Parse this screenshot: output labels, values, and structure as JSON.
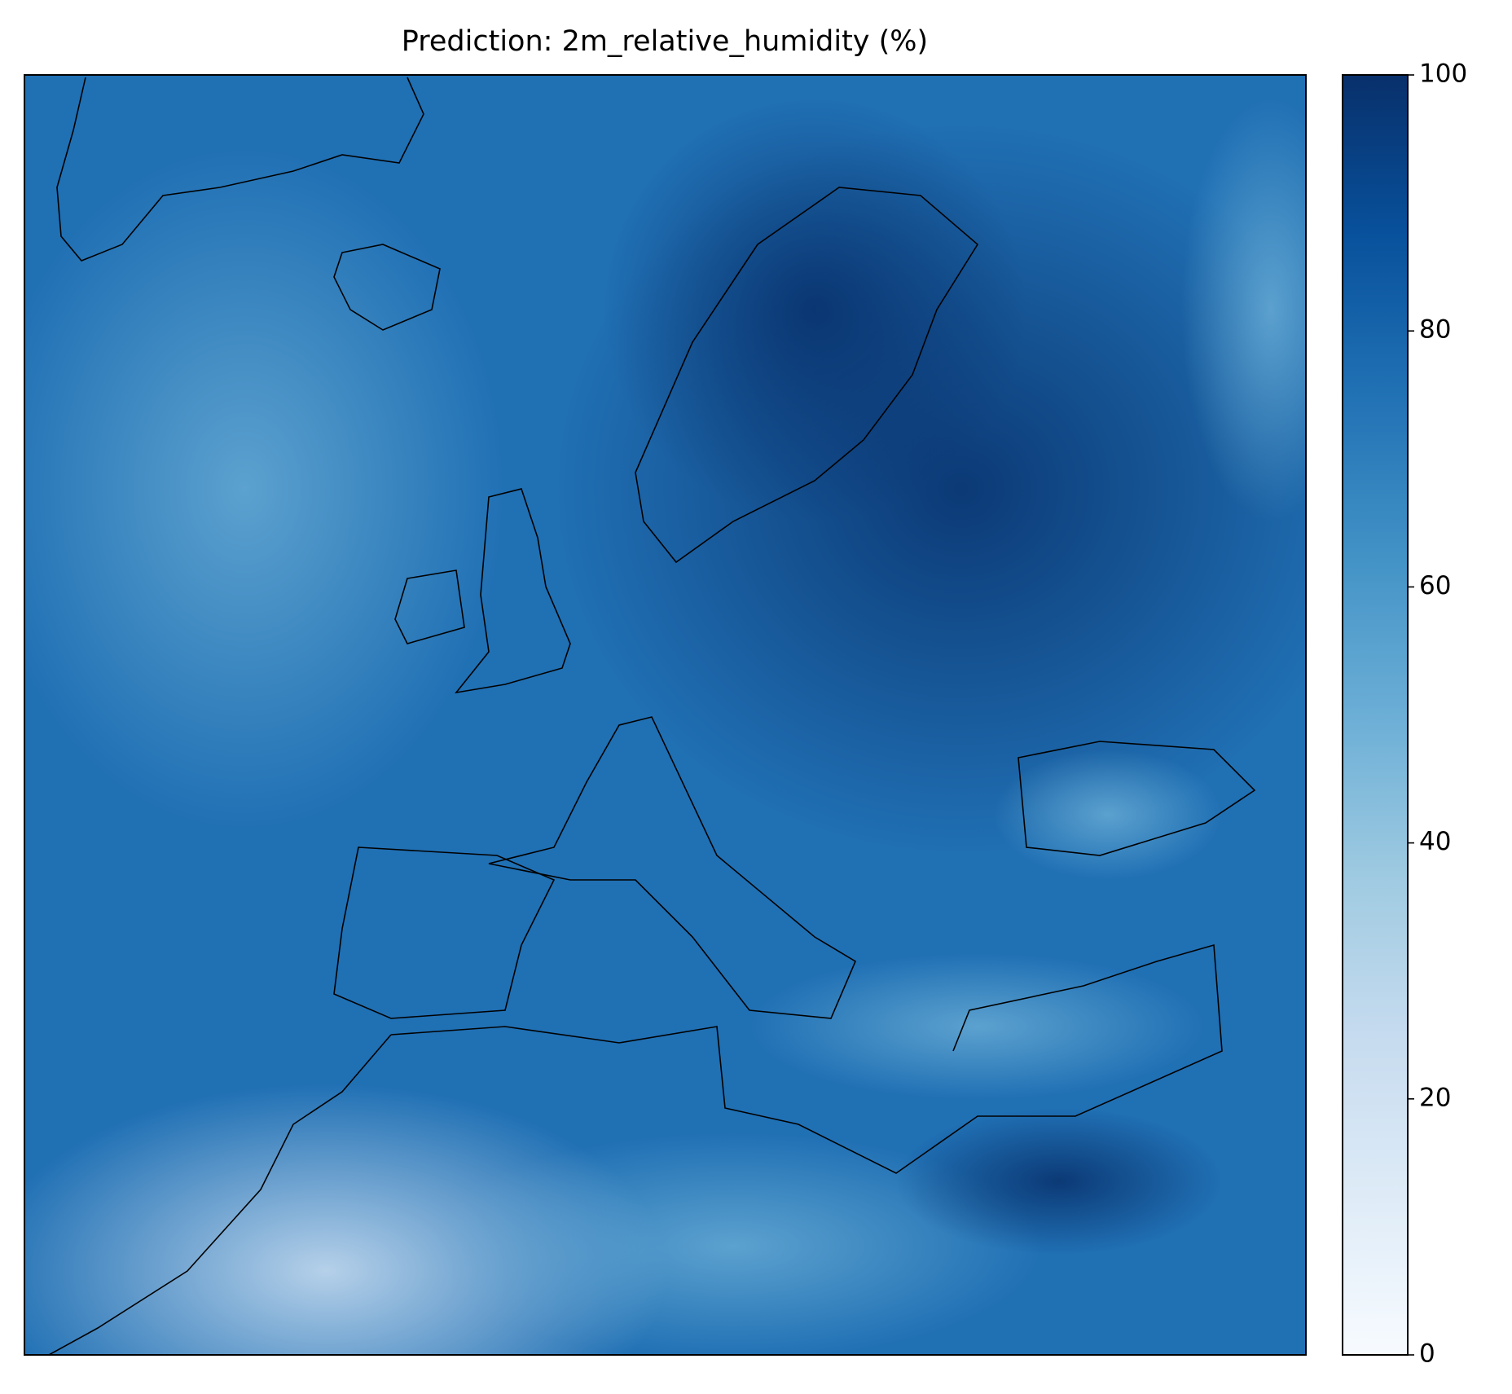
{
  "chart_data": {
    "type": "heatmap",
    "title": "Prediction: 2m_relative_humidity (%)",
    "cmap": "Blues",
    "clim": [
      0,
      100
    ],
    "colorbar_ticks": [
      0,
      20,
      40,
      60,
      80,
      100
    ]
  }
}
